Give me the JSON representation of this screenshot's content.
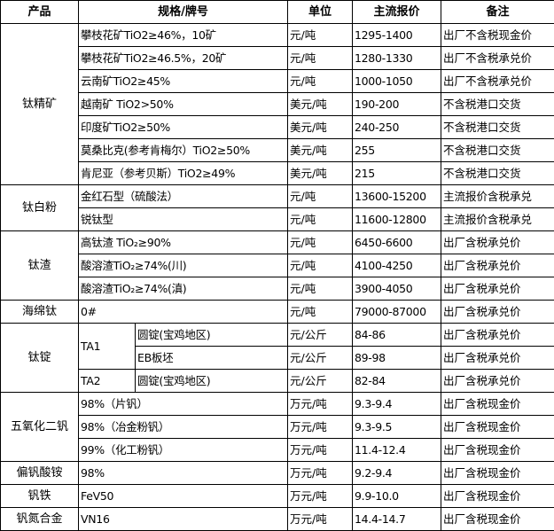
{
  "header": {
    "product": "产品",
    "spec": "规格/牌号",
    "unit": "单位",
    "price": "主流报价",
    "note": "备注"
  },
  "groups": [
    {
      "product": "钛精矿",
      "rows": [
        {
          "spec": "攀枝花矿TiO2≥46%，10矿",
          "unit": "元/吨",
          "price": "1295-1400",
          "note": "出厂不含税现金价"
        },
        {
          "spec": "攀枝花矿TiO2≥46.5%，20矿",
          "unit": "元/吨",
          "price": "1280-1330",
          "note": "出厂不含税承兑价"
        },
        {
          "spec": "云南矿TiO2≥45%",
          "unit": "元/吨",
          "price": "1000-1050",
          "note": "出厂不含税承兑价"
        },
        {
          "spec": "越南矿 TiO2>50%",
          "unit": "美元/吨",
          "price": "190-200",
          "note": "不含税港口交货"
        },
        {
          "spec": "印度矿TiO2≥50%",
          "unit": "美元/吨",
          "price": "240-250",
          "note": "不含税港口交货"
        },
        {
          "spec": "莫桑比克(参考肯梅尔）TiO2≥50%",
          "unit": "美元/吨",
          "price": "255",
          "note": "不含税港口交货"
        },
        {
          "spec": "肯尼亚（参考贝斯）TiO2≥49%",
          "unit": "美元/吨",
          "price": "215",
          "note": "不含税港口交货"
        }
      ]
    },
    {
      "product": "钛白粉",
      "rows": [
        {
          "spec": "金红石型（硫酸法）",
          "unit": "元/吨",
          "price": "13600-15200",
          "note": "主流报价含税承兑"
        },
        {
          "spec": "锐钛型",
          "unit": "元/吨",
          "price": "11600-12800",
          "note": "主流报价含税承兑"
        }
      ]
    },
    {
      "product": "钛渣",
      "rows": [
        {
          "spec": "高钛渣 TiO₂≥90%",
          "unit": "元/吨",
          "price": "6450-6600",
          "note": "出厂含税承兑价"
        },
        {
          "spec": "酸溶渣TiO₂≥74%(川)",
          "unit": "元/吨",
          "price": "4100-4250",
          "note": "出厂含税承兑价"
        },
        {
          "spec": "酸溶渣TiO₂≥74%(滇)",
          "unit": "元/吨",
          "price": "3900-4050",
          "note": "出厂含税承兑价"
        }
      ]
    },
    {
      "product": "海绵钛",
      "rows": [
        {
          "spec": "0#",
          "unit": "元/吨",
          "price": "79000-87000",
          "note": "出厂含税承兑价"
        }
      ]
    },
    {
      "product": "钛锭",
      "subgroups": [
        {
          "grade": "TA1",
          "rows": [
            {
              "spec": "圆锭(宝鸡地区)",
              "unit": "元/公斤",
              "price": "84-86",
              "note": "出厂含税承兑价"
            },
            {
              "spec": "EB板坯",
              "unit": "元/公斤",
              "price": "89-98",
              "note": "出厂含税承兑价"
            }
          ]
        },
        {
          "grade": "TA2",
          "rows": [
            {
              "spec": "圆锭(宝鸡地区)",
              "unit": "元/公斤",
              "price": "82-84",
              "note": "出厂含税承兑价"
            }
          ]
        }
      ]
    },
    {
      "product": "五氧化二钒",
      "rows": [
        {
          "spec": "98%（片钒）",
          "unit": "万元/吨",
          "price": "9.3-9.4",
          "note": "出厂含税现金价"
        },
        {
          "spec": "98%（冶金粉钒）",
          "unit": "万元/吨",
          "price": "9.3-9.5",
          "note": "出厂含税现金价"
        },
        {
          "spec": "99%（化工粉钒）",
          "unit": "万元/吨",
          "price": "11.4-12.4",
          "note": "出厂含税现金价"
        }
      ]
    },
    {
      "product": "偏钒酸铵",
      "rows": [
        {
          "spec": "98%",
          "unit": "万元/吨",
          "price": "9.2-9.4",
          "note": "出厂含税现金价"
        }
      ]
    },
    {
      "product": "钒铁",
      "rows": [
        {
          "spec": "FeV50",
          "unit": "万元/吨",
          "price": "9.9-10.0",
          "note": "出厂含税现金价"
        }
      ]
    },
    {
      "product": "钒氮合金",
      "rows": [
        {
          "spec": "VN16",
          "unit": "万元/吨",
          "price": "14.4-14.7",
          "note": "出厂含税现金价"
        }
      ]
    }
  ]
}
